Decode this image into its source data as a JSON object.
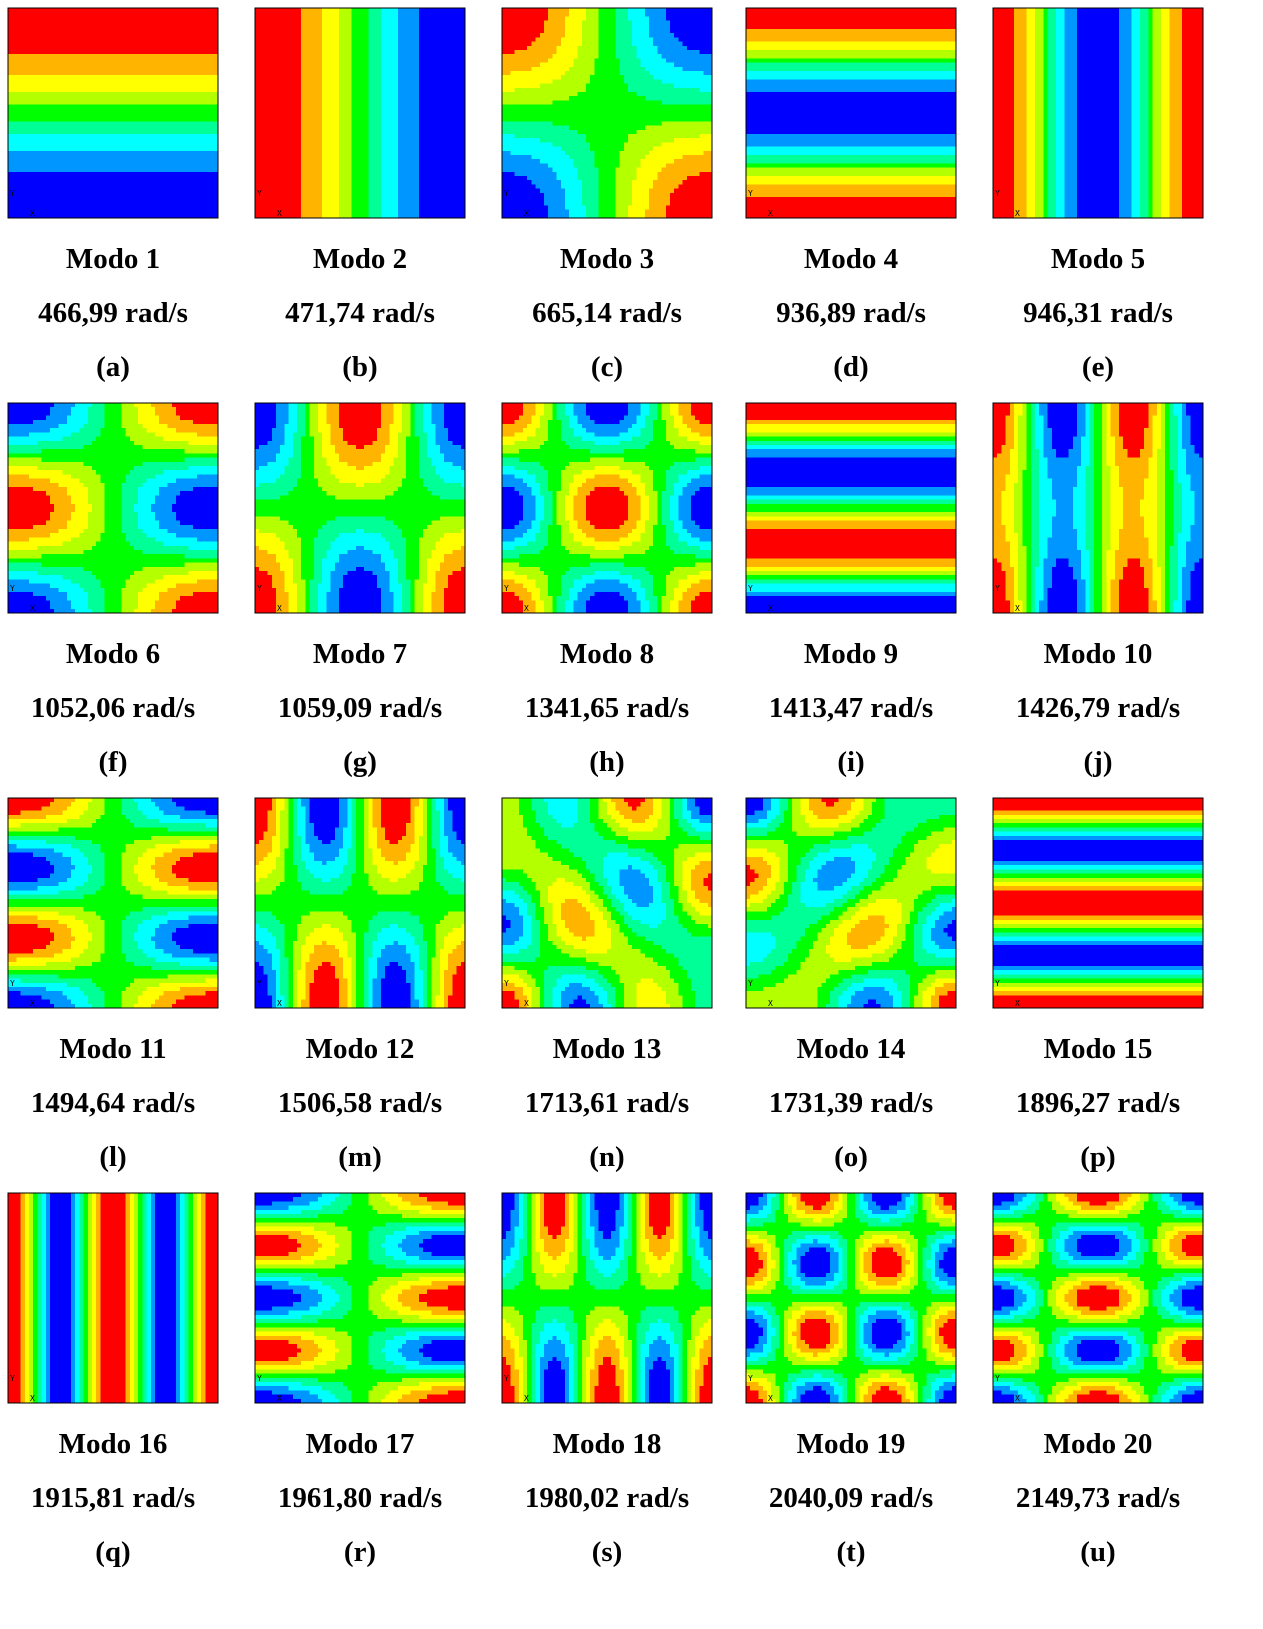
{
  "figure": {
    "panels": [
      {
        "title": "Modo 1",
        "frequency": "466,99 rad/s",
        "label": "(a)"
      },
      {
        "title": "Modo 2",
        "frequency": "471,74 rad/s",
        "label": "(b)"
      },
      {
        "title": "Modo 3",
        "frequency": "665,14 rad/s",
        "label": "(c)"
      },
      {
        "title": "Modo 4",
        "frequency": "936,89 rad/s",
        "label": "(d)"
      },
      {
        "title": "Modo 5",
        "frequency": "946,31 rad/s",
        "label": "(e)"
      },
      {
        "title": "Modo 6",
        "frequency": "1052,06 rad/s",
        "label": "(f)"
      },
      {
        "title": "Modo 7",
        "frequency": "1059,09 rad/s",
        "label": "(g)"
      },
      {
        "title": "Modo 8",
        "frequency": "1341,65 rad/s",
        "label": "(h)"
      },
      {
        "title": "Modo 9",
        "frequency": "1413,47 rad/s",
        "label": "(i)"
      },
      {
        "title": "Modo 10",
        "frequency": "1426,79 rad/s",
        "label": "(j)"
      },
      {
        "title": "Modo 11",
        "frequency": "1494,64 rad/s",
        "label": "(l)"
      },
      {
        "title": "Modo 12",
        "frequency": "1506,58 rad/s",
        "label": "(m)"
      },
      {
        "title": "Modo 13",
        "frequency": "1713,61 rad/s",
        "label": "(n)"
      },
      {
        "title": "Modo 14",
        "frequency": "1731,39 rad/s",
        "label": "(o)"
      },
      {
        "title": "Modo 15",
        "frequency": "1896,27 rad/s",
        "label": "(p)"
      },
      {
        "title": "Modo 16",
        "frequency": "1915,81 rad/s",
        "label": "(q)"
      },
      {
        "title": "Modo 17",
        "frequency": "1961,80 rad/s",
        "label": "(r)"
      },
      {
        "title": "Modo 18",
        "frequency": "1980,02 rad/s",
        "label": "(s)"
      },
      {
        "title": "Modo 19",
        "frequency": "2040,09 rad/s",
        "label": "(t)"
      },
      {
        "title": "Modo 20",
        "frequency": "2149,73 rad/s",
        "label": "(u)"
      }
    ],
    "axis_triad": {
      "y": "Y",
      "x": "X"
    }
  }
}
